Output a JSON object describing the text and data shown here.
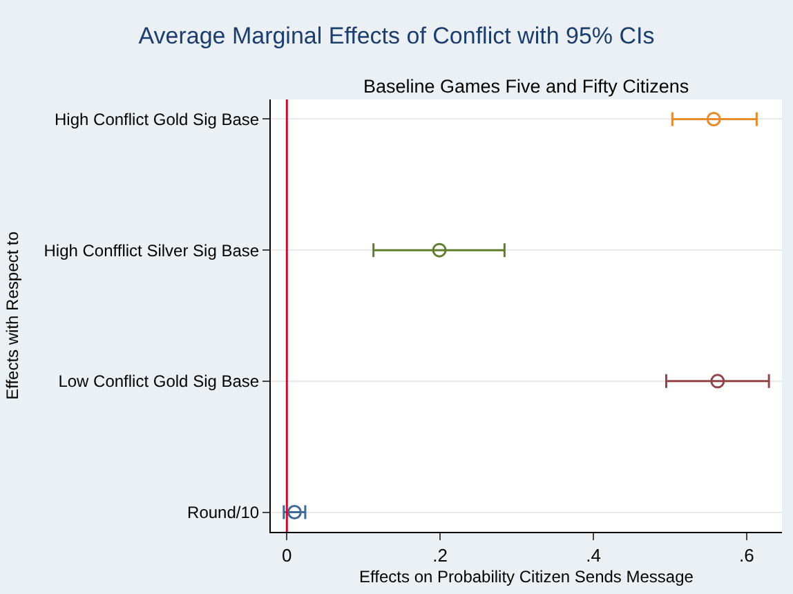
{
  "chart_data": {
    "type": "scatter",
    "orientation": "horizontal",
    "title": "Average Marginal Effects of Conflict with 95% CIs",
    "subtitle": "Baseline Games Five and Fifty Citizens",
    "xlabel": "Effects on Probability Citizen Sends Message",
    "ylabel": "Effects with Respect to",
    "categories": [
      "High Conflict Gold Sig Base",
      "High Confflict Silver Sig Base",
      "Low Conflict Gold Sig Base",
      "Round/10"
    ],
    "values": [
      0.557,
      0.199,
      0.562,
      0.01
    ],
    "errors": [
      [
        0.503,
        0.613
      ],
      [
        0.113,
        0.284
      ],
      [
        0.495,
        0.629
      ],
      [
        -0.004,
        0.024
      ]
    ],
    "colors": [
      "#e8892b",
      "#5f7f2f",
      "#934448",
      "#3f6a98"
    ],
    "xlim": [
      -0.021,
      0.646
    ],
    "xticks": [
      {
        "value": 0,
        "label": "0"
      },
      {
        "value": 0.2,
        "label": ".2"
      },
      {
        "value": 0.4,
        "label": ".4"
      },
      {
        "value": 0.6,
        "label": ".6"
      }
    ],
    "ref_lines": [
      {
        "axis": "x",
        "value": 0,
        "color": "#c8102e"
      }
    ],
    "grid": "y",
    "marker": "circle"
  }
}
